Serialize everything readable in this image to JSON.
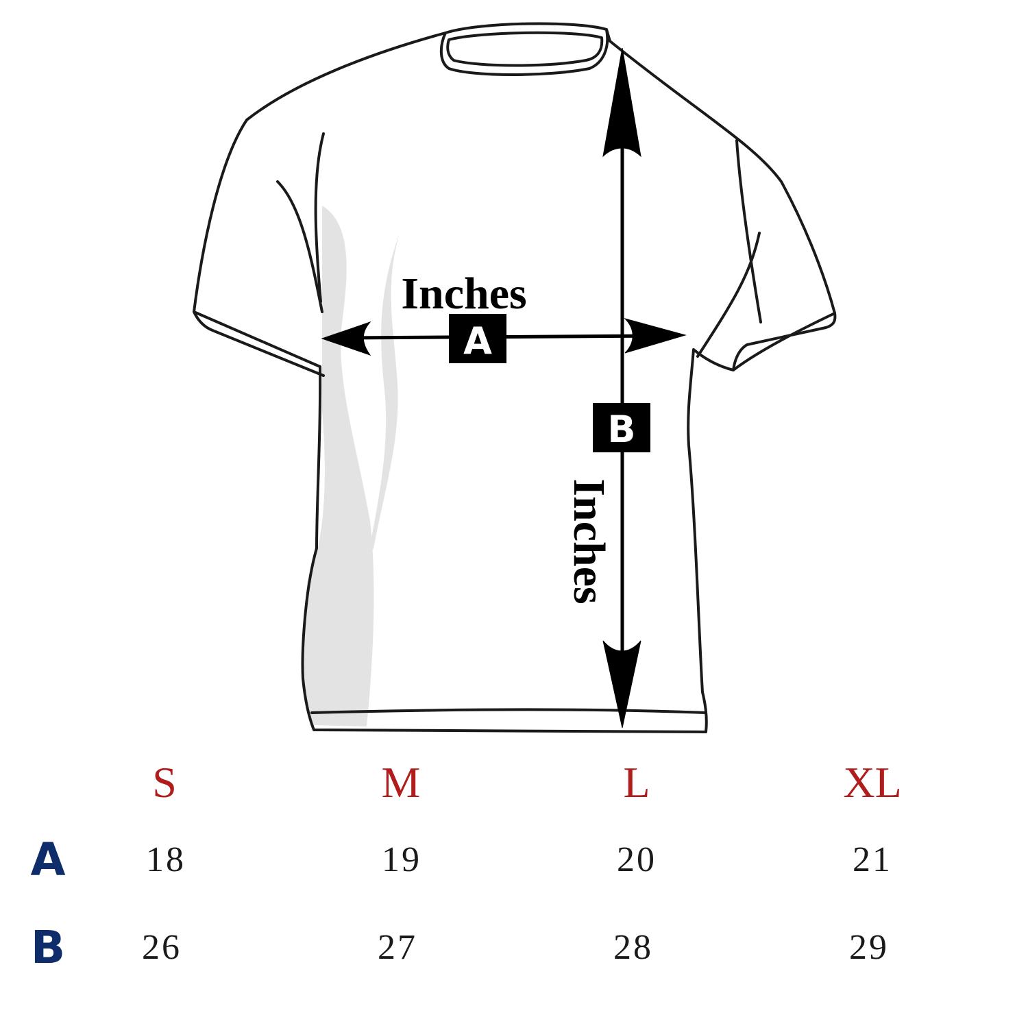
{
  "diagram": {
    "label_a": "Inches",
    "label_b": "Inches",
    "badge_a": "A",
    "badge_b": "B"
  },
  "colors": {
    "size_header": "#b01d1d",
    "row_label": "#0f2c6b",
    "outline": "#1a1a1a",
    "shading": "#e3e3e3"
  },
  "size_table": {
    "sizes": [
      "S",
      "M",
      "L",
      "XL"
    ],
    "rows": [
      {
        "label": "A",
        "values": [
          "18",
          "19",
          "20",
          "21"
        ]
      },
      {
        "label": "B",
        "values": [
          "26",
          "27",
          "28",
          "29"
        ]
      }
    ]
  }
}
